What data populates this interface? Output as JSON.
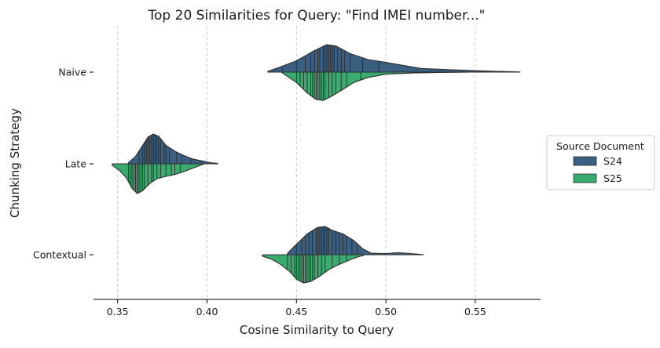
{
  "chart_data": {
    "type": "violin",
    "title": "Top 20 Similarities for Query: \"Find IMEI number...\"",
    "xlabel": "Cosine Similarity to Query",
    "ylabel": "Chunking Strategy",
    "xlim": [
      0.3365,
      0.5865
    ],
    "xticks": [
      0.35,
      0.4,
      0.45,
      0.5,
      0.55
    ],
    "xtick_labels": [
      "0.35",
      "0.40",
      "0.45",
      "0.50",
      "0.55"
    ],
    "grid": "x dashed",
    "split_violin": true,
    "inner": "stick",
    "categories": [
      "Naive",
      "Late",
      "Contextual"
    ],
    "legend": {
      "title": "Source Document",
      "placement": "right",
      "entries": [
        {
          "name": "S24",
          "color": "#3b5f80"
        },
        {
          "name": "S25",
          "color": "#3aaa6e"
        }
      ]
    },
    "series": [
      {
        "name": "S24",
        "color": "#3b5f80",
        "half": "upper",
        "violins": [
          {
            "category": "Naive",
            "range": [
              0.434,
              0.575
            ],
            "density": [
              [
                0.434,
                0.03
              ],
              [
                0.44,
                0.15
              ],
              [
                0.45,
                0.38
              ],
              [
                0.46,
                0.72
              ],
              [
                0.467,
                0.92
              ],
              [
                0.472,
                0.88
              ],
              [
                0.48,
                0.62
              ],
              [
                0.49,
                0.42
              ],
              [
                0.5,
                0.33
              ],
              [
                0.51,
                0.22
              ],
              [
                0.52,
                0.12
              ],
              [
                0.54,
                0.07
              ],
              [
                0.56,
                0.03
              ],
              [
                0.575,
                0.005
              ]
            ],
            "values": [
              0.442,
              0.45,
              0.455,
              0.458,
              0.46,
              0.462,
              0.463,
              0.465,
              0.466,
              0.467,
              0.468,
              0.469,
              0.47,
              0.471,
              0.473,
              0.475,
              0.477,
              0.48,
              0.487,
              0.496
            ]
          },
          {
            "category": "Late",
            "range": [
              0.356,
              0.406
            ],
            "density": [
              [
                0.356,
                0.04
              ],
              [
                0.36,
                0.25
              ],
              [
                0.364,
                0.62
              ],
              [
                0.367,
                0.9
              ],
              [
                0.37,
                1.0
              ],
              [
                0.373,
                0.92
              ],
              [
                0.377,
                0.62
              ],
              [
                0.382,
                0.42
              ],
              [
                0.387,
                0.28
              ],
              [
                0.392,
                0.16
              ],
              [
                0.397,
                0.1
              ],
              [
                0.402,
                0.04
              ],
              [
                0.406,
                0.01
              ]
            ],
            "values": [
              0.362,
              0.364,
              0.365,
              0.366,
              0.367,
              0.368,
              0.369,
              0.369,
              0.37,
              0.371,
              0.371,
              0.372,
              0.373,
              0.374,
              0.376,
              0.377,
              0.379,
              0.383,
              0.386,
              0.391
            ]
          },
          {
            "category": "Contextual",
            "range": [
              0.445,
              0.521
            ],
            "density": [
              [
                0.445,
                0.05
              ],
              [
                0.45,
                0.35
              ],
              [
                0.456,
                0.7
              ],
              [
                0.462,
                0.92
              ],
              [
                0.466,
                0.95
              ],
              [
                0.47,
                0.82
              ],
              [
                0.476,
                0.7
              ],
              [
                0.482,
                0.48
              ],
              [
                0.487,
                0.2
              ],
              [
                0.492,
                0.05
              ],
              [
                0.5,
                0.04
              ],
              [
                0.507,
                0.07
              ],
              [
                0.514,
                0.04
              ],
              [
                0.521,
                0.003
              ]
            ],
            "values": [
              0.45,
              0.453,
              0.455,
              0.457,
              0.459,
              0.461,
              0.462,
              0.463,
              0.464,
              0.465,
              0.466,
              0.467,
              0.468,
              0.47,
              0.472,
              0.474,
              0.476,
              0.478,
              0.481,
              0.484
            ]
          }
        ]
      },
      {
        "name": "S25",
        "color": "#3aaa6e",
        "half": "lower",
        "violins": [
          {
            "category": "Naive",
            "range": [
              0.442,
              0.545
            ],
            "density": [
              [
                0.442,
                0.02
              ],
              [
                0.45,
                0.35
              ],
              [
                0.456,
                0.7
              ],
              [
                0.461,
                0.92
              ],
              [
                0.465,
                0.95
              ],
              [
                0.47,
                0.8
              ],
              [
                0.476,
                0.58
              ],
              [
                0.482,
                0.35
              ],
              [
                0.49,
                0.18
              ],
              [
                0.5,
                0.07
              ],
              [
                0.515,
                0.03
              ],
              [
                0.53,
                0.01
              ],
              [
                0.545,
                0.003
              ]
            ],
            "values": [
              0.45,
              0.452,
              0.454,
              0.456,
              0.458,
              0.459,
              0.46,
              0.461,
              0.462,
              0.463,
              0.464,
              0.465,
              0.466,
              0.468,
              0.47,
              0.472,
              0.475,
              0.478,
              0.486,
              0.505
            ]
          },
          {
            "category": "Late",
            "range": [
              0.347,
              0.398
            ],
            "density": [
              [
                0.347,
                0.05
              ],
              [
                0.351,
                0.22
              ],
              [
                0.355,
                0.48
              ],
              [
                0.358,
                0.82
              ],
              [
                0.361,
                1.0
              ],
              [
                0.364,
                0.9
              ],
              [
                0.368,
                0.66
              ],
              [
                0.372,
                0.5
              ],
              [
                0.377,
                0.42
              ],
              [
                0.382,
                0.36
              ],
              [
                0.388,
                0.24
              ],
              [
                0.394,
                0.1
              ],
              [
                0.398,
                0.01
              ]
            ],
            "values": [
              0.356,
              0.357,
              0.358,
              0.359,
              0.36,
              0.361,
              0.361,
              0.362,
              0.363,
              0.364,
              0.365,
              0.367,
              0.369,
              0.37,
              0.372,
              0.374,
              0.377,
              0.38,
              0.382,
              0.385
            ]
          },
          {
            "category": "Contextual",
            "range": [
              0.431,
              0.488
            ],
            "density": [
              [
                0.431,
                0.05
              ],
              [
                0.436,
                0.15
              ],
              [
                0.441,
                0.32
              ],
              [
                0.446,
                0.55
              ],
              [
                0.45,
                0.82
              ],
              [
                0.454,
                0.95
              ],
              [
                0.458,
                0.9
              ],
              [
                0.463,
                0.72
              ],
              [
                0.468,
                0.5
              ],
              [
                0.473,
                0.35
              ],
              [
                0.478,
                0.22
              ],
              [
                0.483,
                0.1
              ],
              [
                0.488,
                0.01
              ]
            ],
            "values": [
              0.445,
              0.447,
              0.449,
              0.45,
              0.451,
              0.452,
              0.453,
              0.454,
              0.455,
              0.456,
              0.457,
              0.458,
              0.459,
              0.46,
              0.462,
              0.464,
              0.466,
              0.47,
              0.474,
              0.478
            ]
          }
        ]
      }
    ]
  }
}
